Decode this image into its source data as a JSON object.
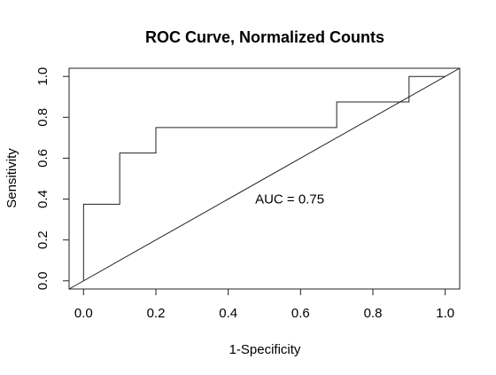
{
  "chart_data": {
    "type": "line",
    "title": "ROC Curve, Normalized Counts",
    "xlabel": "1-Specificity",
    "ylabel": "Sensitivity",
    "xlim": [
      -0.04,
      1.04
    ],
    "ylim": [
      -0.04,
      1.04
    ],
    "x_ticks": [
      "0.0",
      "0.2",
      "0.4",
      "0.6",
      "0.8",
      "1.0"
    ],
    "y_ticks": [
      "0.0",
      "0.2",
      "0.4",
      "0.6",
      "0.8",
      "1.0"
    ],
    "grid": false,
    "series": [
      {
        "x": [
          0.0,
          0.0,
          0.1,
          0.1,
          0.2,
          0.2,
          0.7,
          0.7,
          0.9,
          0.9,
          1.0
        ],
        "y": [
          0.0,
          0.375,
          0.375,
          0.625,
          0.625,
          0.75,
          0.75,
          0.875,
          0.875,
          1.0,
          1.0
        ]
      }
    ],
    "reference_line": {
      "x": [
        -0.04,
        1.04
      ],
      "y": [
        -0.04,
        1.04
      ]
    },
    "annotations": [
      {
        "text": "AUC =  0.75",
        "x": 0.57,
        "y": 0.4
      }
    ]
  }
}
